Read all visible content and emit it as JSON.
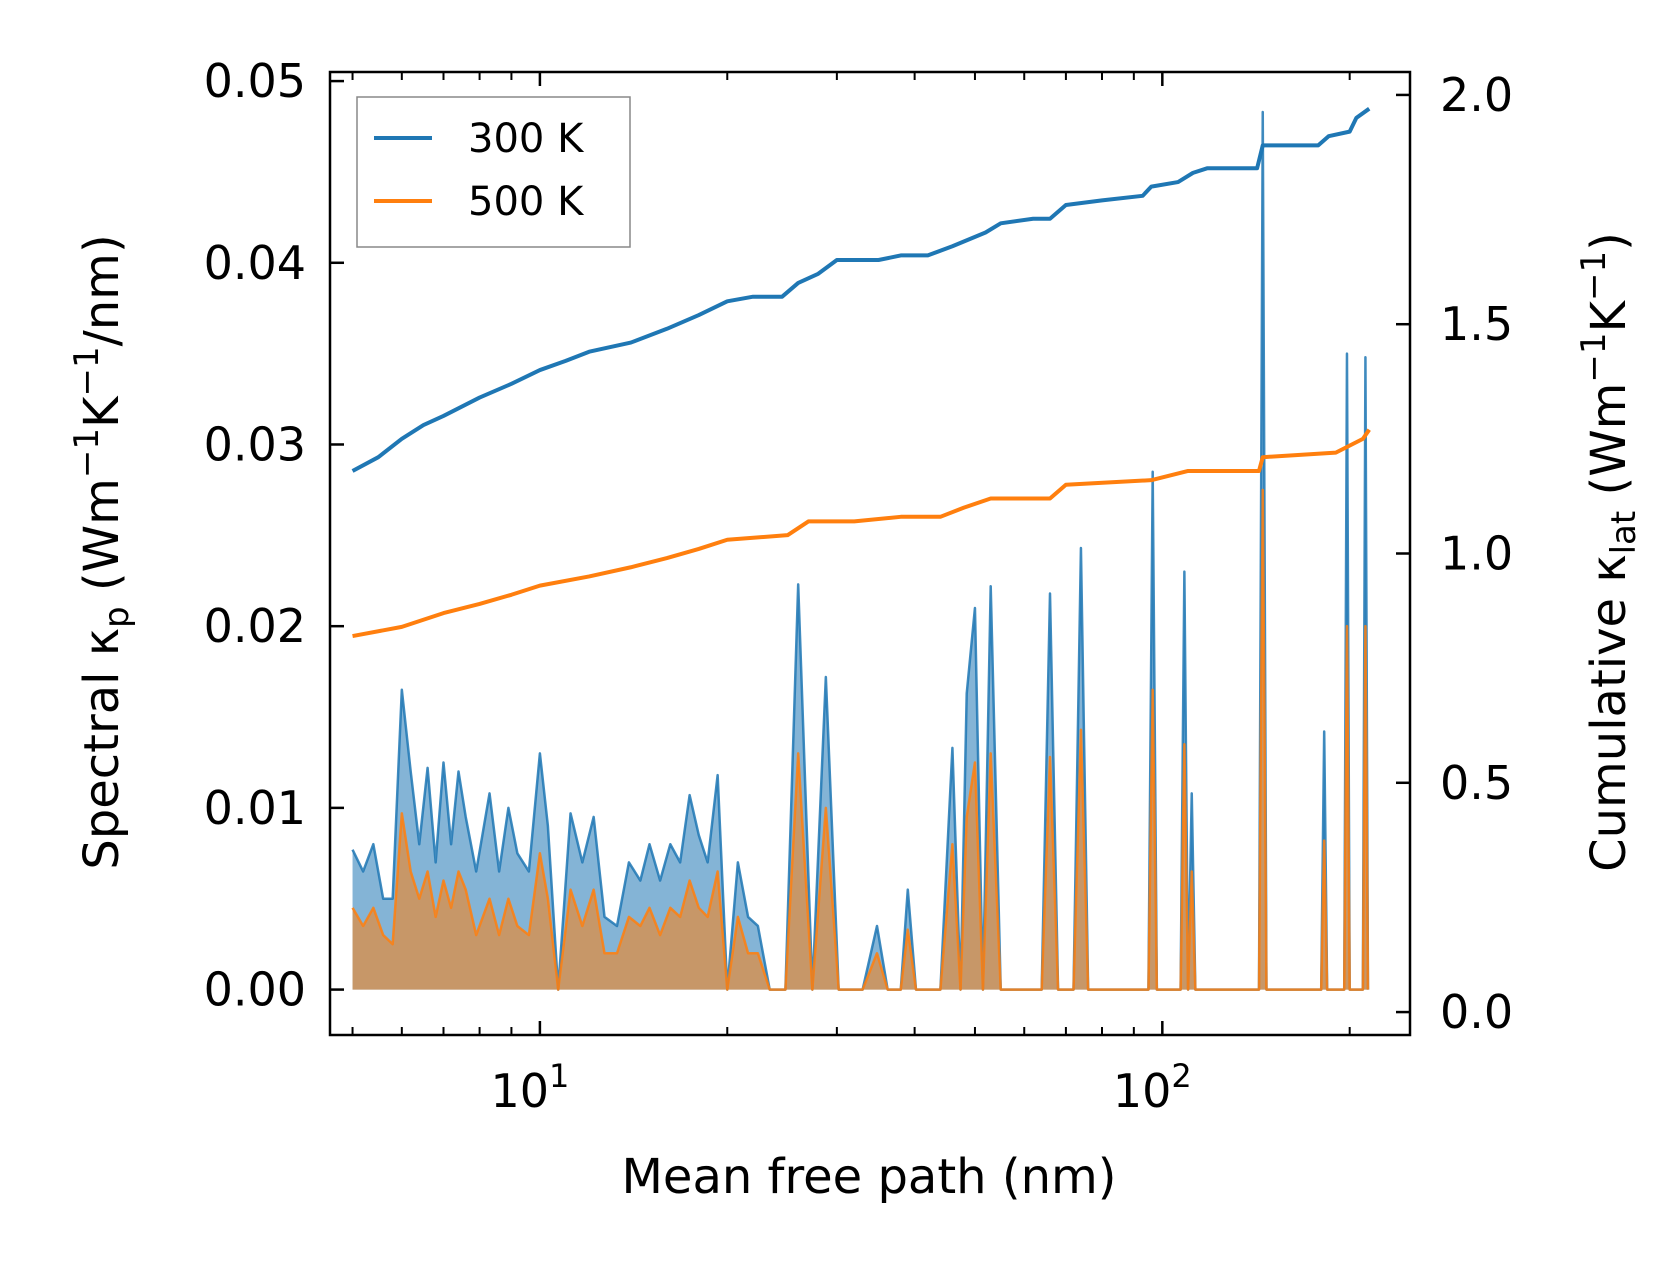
{
  "chart_data": {
    "type": "line",
    "title": "",
    "xlabel": "Mean free path (nm)",
    "xscale": "log",
    "xlim": [
      4.6,
      250
    ],
    "x_major_ticks": [
      {
        "value": 10,
        "label": "10",
        "exp": "1"
      },
      {
        "value": 100,
        "label": "10",
        "exp": "2"
      }
    ],
    "left_axis": {
      "label_prefix": "Spectral κ",
      "label_sub": "p",
      "label_units": "(Wm",
      "label_exp1": "−1",
      "label_mid": "K",
      "label_exp2": "−1",
      "label_end": "/nm)",
      "ylim": [
        -0.0025,
        0.0505
      ],
      "ticks": [
        0.0,
        0.01,
        0.02,
        0.03,
        0.04,
        0.05
      ],
      "tick_labels": [
        "0.00",
        "0.01",
        "0.02",
        "0.03",
        "0.04",
        "0.05"
      ]
    },
    "right_axis": {
      "label_prefix": "Cumulative κ",
      "label_sub": "lat",
      "label_units": "(Wm",
      "label_exp1": "−1",
      "label_mid": "K",
      "label_exp2": "−1",
      "label_end": ")",
      "ylim": [
        -0.05,
        2.05
      ],
      "ticks": [
        0.0,
        0.5,
        1.0,
        1.5,
        2.0
      ],
      "tick_labels": [
        "0.0",
        "0.5",
        "1.0",
        "1.5",
        "2.0"
      ]
    },
    "legend": {
      "position": "top-left",
      "entries": [
        {
          "label": "300 K",
          "color": "#1f77b4"
        },
        {
          "label": "500 K",
          "color": "#ff7f0e"
        }
      ]
    },
    "series": [
      {
        "name": "300 K",
        "color": "#1f77b4",
        "cumulative": [
          [
            5.0,
            1.18
          ],
          [
            5.5,
            1.21
          ],
          [
            6.0,
            1.25
          ],
          [
            6.5,
            1.28
          ],
          [
            7.0,
            1.3
          ],
          [
            8.0,
            1.34
          ],
          [
            9.0,
            1.37
          ],
          [
            10.0,
            1.4
          ],
          [
            11.0,
            1.42
          ],
          [
            12.0,
            1.44
          ],
          [
            14.0,
            1.46
          ],
          [
            16.0,
            1.49
          ],
          [
            18.0,
            1.52
          ],
          [
            20.0,
            1.55
          ],
          [
            22.0,
            1.56
          ],
          [
            24.5,
            1.56
          ],
          [
            26.0,
            1.59
          ],
          [
            28.0,
            1.61
          ],
          [
            30.0,
            1.64
          ],
          [
            35.0,
            1.64
          ],
          [
            38.0,
            1.65
          ],
          [
            42.0,
            1.65
          ],
          [
            46.0,
            1.67
          ],
          [
            52.0,
            1.7
          ],
          [
            55.0,
            1.72
          ],
          [
            62.0,
            1.73
          ],
          [
            66.0,
            1.73
          ],
          [
            70.0,
            1.76
          ],
          [
            80.0,
            1.77
          ],
          [
            93.0,
            1.78
          ],
          [
            96.0,
            1.8
          ],
          [
            106.0,
            1.81
          ],
          [
            112.0,
            1.83
          ],
          [
            118.0,
            1.84
          ],
          [
            142.0,
            1.84
          ],
          [
            145.0,
            1.89
          ],
          [
            178.0,
            1.89
          ],
          [
            185.0,
            1.91
          ],
          [
            200.0,
            1.92
          ],
          [
            205.0,
            1.95
          ],
          [
            215.0,
            1.97
          ]
        ],
        "spectral": [
          [
            5.0,
            0.0077
          ],
          [
            5.2,
            0.0065
          ],
          [
            5.4,
            0.008
          ],
          [
            5.6,
            0.005
          ],
          [
            5.8,
            0.005
          ],
          [
            6.0,
            0.0165
          ],
          [
            6.2,
            0.012
          ],
          [
            6.4,
            0.008
          ],
          [
            6.6,
            0.0122
          ],
          [
            6.8,
            0.007
          ],
          [
            7.0,
            0.0125
          ],
          [
            7.2,
            0.008
          ],
          [
            7.4,
            0.012
          ],
          [
            7.6,
            0.0095
          ],
          [
            7.9,
            0.0065
          ],
          [
            8.3,
            0.0108
          ],
          [
            8.6,
            0.0065
          ],
          [
            8.9,
            0.01
          ],
          [
            9.2,
            0.0075
          ],
          [
            9.6,
            0.0065
          ],
          [
            10.0,
            0.013
          ],
          [
            10.3,
            0.009
          ],
          [
            10.7,
            0.0
          ],
          [
            11.2,
            0.0097
          ],
          [
            11.7,
            0.007
          ],
          [
            12.2,
            0.0095
          ],
          [
            12.7,
            0.004
          ],
          [
            13.3,
            0.0035
          ],
          [
            13.9,
            0.007
          ],
          [
            14.5,
            0.006
          ],
          [
            15.0,
            0.008
          ],
          [
            15.6,
            0.006
          ],
          [
            16.2,
            0.008
          ],
          [
            16.8,
            0.007
          ],
          [
            17.4,
            0.0107
          ],
          [
            18.0,
            0.0085
          ],
          [
            18.6,
            0.007
          ],
          [
            19.3,
            0.0118
          ],
          [
            20.0,
            0.0
          ],
          [
            20.8,
            0.007
          ],
          [
            21.6,
            0.004
          ],
          [
            22.4,
            0.0035
          ],
          [
            23.4,
            0.0
          ],
          [
            24.8,
            0.0
          ],
          [
            26.0,
            0.0223
          ],
          [
            27.4,
            0.0
          ],
          [
            28.8,
            0.0172
          ],
          [
            30.2,
            0.0
          ],
          [
            31.0,
            0.0
          ],
          [
            33.0,
            0.0
          ],
          [
            34.8,
            0.0035
          ],
          [
            36.2,
            0.0
          ],
          [
            38.0,
            0.0
          ],
          [
            39.0,
            0.0055
          ],
          [
            40.2,
            0.0
          ],
          [
            44.0,
            0.0
          ],
          [
            46.0,
            0.0133
          ],
          [
            47.4,
            0.0
          ],
          [
            48.5,
            0.0163
          ],
          [
            50.0,
            0.021
          ],
          [
            51.5,
            0.0
          ],
          [
            53.0,
            0.0222
          ],
          [
            55.0,
            0.0
          ],
          [
            64.0,
            0.0
          ],
          [
            66.0,
            0.0218
          ],
          [
            68.0,
            0.0
          ],
          [
            72.0,
            0.0
          ],
          [
            74.0,
            0.0243
          ],
          [
            76.0,
            0.0
          ],
          [
            95.0,
            0.0
          ],
          [
            96.5,
            0.0285
          ],
          [
            98.0,
            0.0
          ],
          [
            107.0,
            0.0
          ],
          [
            108.5,
            0.023
          ],
          [
            110.0,
            0.0
          ],
          [
            111.5,
            0.0108
          ],
          [
            113.0,
            0.0
          ],
          [
            143.0,
            0.0
          ],
          [
            145.0,
            0.0483
          ],
          [
            147.0,
            0.0
          ],
          [
            180.0,
            0.0
          ],
          [
            182.0,
            0.0142
          ],
          [
            184.0,
            0.0
          ],
          [
            196.0,
            0.0
          ],
          [
            198.0,
            0.035
          ],
          [
            200.0,
            0.0
          ],
          [
            210.0,
            0.0
          ],
          [
            212.0,
            0.0348
          ],
          [
            214.0,
            0.0
          ]
        ]
      },
      {
        "name": "500 K",
        "color": "#ff7f0e",
        "cumulative": [
          [
            5.0,
            0.82
          ],
          [
            6.0,
            0.84
          ],
          [
            7.0,
            0.87
          ],
          [
            8.0,
            0.89
          ],
          [
            9.0,
            0.91
          ],
          [
            10.0,
            0.93
          ],
          [
            12.0,
            0.95
          ],
          [
            14.0,
            0.97
          ],
          [
            16.0,
            0.99
          ],
          [
            18.0,
            1.01
          ],
          [
            20.0,
            1.03
          ],
          [
            25.0,
            1.04
          ],
          [
            27.0,
            1.07
          ],
          [
            32.0,
            1.07
          ],
          [
            38.0,
            1.08
          ],
          [
            44.0,
            1.08
          ],
          [
            48.0,
            1.1
          ],
          [
            53.0,
            1.12
          ],
          [
            66.0,
            1.12
          ],
          [
            70.0,
            1.15
          ],
          [
            96.0,
            1.16
          ],
          [
            110.0,
            1.18
          ],
          [
            143.0,
            1.18
          ],
          [
            145.0,
            1.21
          ],
          [
            190.0,
            1.22
          ],
          [
            210.0,
            1.25
          ],
          [
            215.0,
            1.27
          ]
        ],
        "spectral": [
          [
            5.0,
            0.0045
          ],
          [
            5.2,
            0.0035
          ],
          [
            5.4,
            0.0045
          ],
          [
            5.6,
            0.003
          ],
          [
            5.8,
            0.0025
          ],
          [
            6.0,
            0.0097
          ],
          [
            6.2,
            0.0065
          ],
          [
            6.4,
            0.005
          ],
          [
            6.6,
            0.0065
          ],
          [
            6.8,
            0.004
          ],
          [
            7.0,
            0.006
          ],
          [
            7.2,
            0.0045
          ],
          [
            7.4,
            0.0065
          ],
          [
            7.6,
            0.0055
          ],
          [
            7.9,
            0.003
          ],
          [
            8.3,
            0.005
          ],
          [
            8.6,
            0.003
          ],
          [
            8.9,
            0.005
          ],
          [
            9.2,
            0.0035
          ],
          [
            9.6,
            0.003
          ],
          [
            10.0,
            0.0075
          ],
          [
            10.3,
            0.005
          ],
          [
            10.7,
            0.0
          ],
          [
            11.2,
            0.0055
          ],
          [
            11.7,
            0.0035
          ],
          [
            12.2,
            0.0055
          ],
          [
            12.7,
            0.002
          ],
          [
            13.3,
            0.002
          ],
          [
            13.9,
            0.004
          ],
          [
            14.5,
            0.0035
          ],
          [
            15.0,
            0.0045
          ],
          [
            15.6,
            0.003
          ],
          [
            16.2,
            0.0045
          ],
          [
            16.8,
            0.004
          ],
          [
            17.4,
            0.006
          ],
          [
            18.0,
            0.0045
          ],
          [
            18.6,
            0.004
          ],
          [
            19.3,
            0.0065
          ],
          [
            20.0,
            0.0
          ],
          [
            20.8,
            0.004
          ],
          [
            21.6,
            0.002
          ],
          [
            22.4,
            0.002
          ],
          [
            23.4,
            0.0
          ],
          [
            24.8,
            0.0
          ],
          [
            26.0,
            0.013
          ],
          [
            27.4,
            0.0
          ],
          [
            28.8,
            0.01
          ],
          [
            30.2,
            0.0
          ],
          [
            31.0,
            0.0
          ],
          [
            33.0,
            0.0
          ],
          [
            34.8,
            0.002
          ],
          [
            36.2,
            0.0
          ],
          [
            38.0,
            0.0
          ],
          [
            39.0,
            0.0033
          ],
          [
            40.2,
            0.0
          ],
          [
            44.0,
            0.0
          ],
          [
            46.0,
            0.008
          ],
          [
            47.4,
            0.0
          ],
          [
            48.5,
            0.0095
          ],
          [
            50.0,
            0.0125
          ],
          [
            51.5,
            0.0
          ],
          [
            53.0,
            0.013
          ],
          [
            55.0,
            0.0
          ],
          [
            64.0,
            0.0
          ],
          [
            66.0,
            0.0128
          ],
          [
            68.0,
            0.0
          ],
          [
            72.0,
            0.0
          ],
          [
            74.0,
            0.0143
          ],
          [
            76.0,
            0.0
          ],
          [
            95.0,
            0.0
          ],
          [
            96.5,
            0.0165
          ],
          [
            98.0,
            0.0
          ],
          [
            107.0,
            0.0
          ],
          [
            108.5,
            0.0135
          ],
          [
            110.0,
            0.0
          ],
          [
            111.5,
            0.0065
          ],
          [
            113.0,
            0.0
          ],
          [
            143.0,
            0.0
          ],
          [
            145.0,
            0.0275
          ],
          [
            147.0,
            0.0
          ],
          [
            180.0,
            0.0
          ],
          [
            182.0,
            0.0082
          ],
          [
            184.0,
            0.0
          ],
          [
            196.0,
            0.0
          ],
          [
            198.0,
            0.02
          ],
          [
            200.0,
            0.0
          ],
          [
            210.0,
            0.0
          ],
          [
            212.0,
            0.02
          ],
          [
            214.0,
            0.0
          ]
        ]
      }
    ]
  }
}
